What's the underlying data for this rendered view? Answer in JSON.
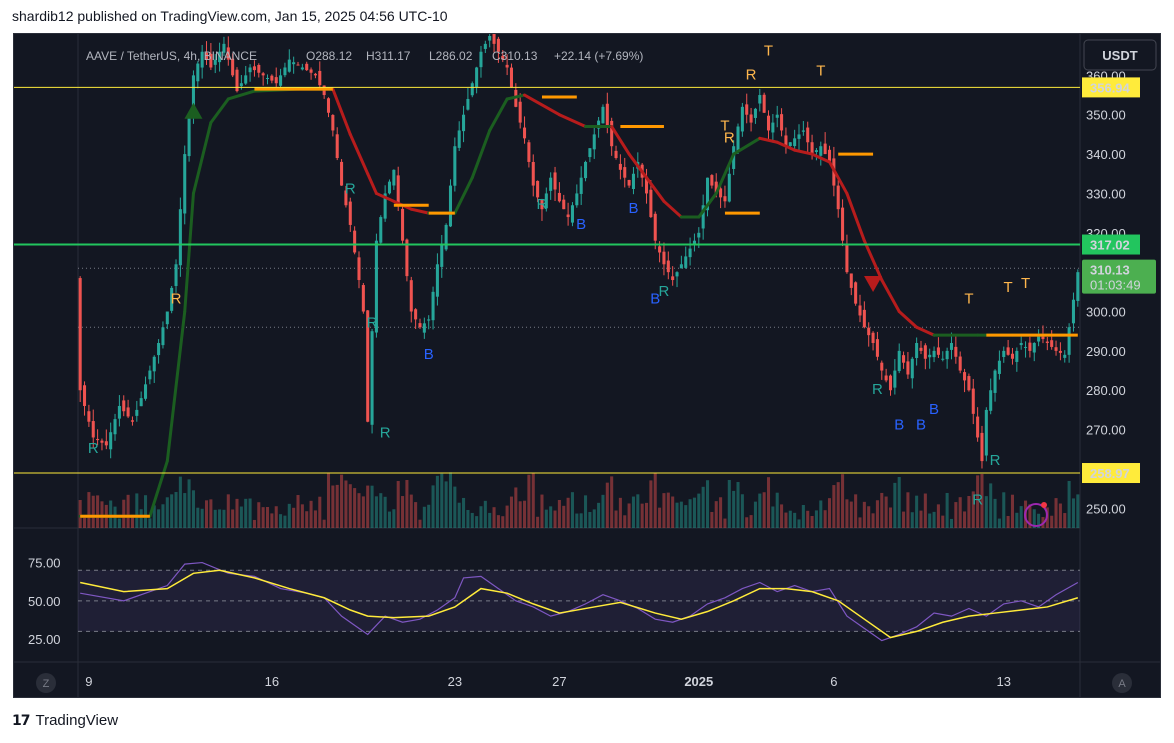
{
  "header": {
    "text": "shardib12 published on TradingView.com, Jan 15, 2025 04:56 UTC-10"
  },
  "footer": {
    "logo": "17",
    "brand": "TradingView"
  },
  "colors": {
    "background": "#131722",
    "up": "#26a69a",
    "down": "#ef5350",
    "yellow_line": "#ffeb3b",
    "green_line": "#22c55e",
    "orange": "#ff9800",
    "trail_green": "#1b5e20",
    "trail_red": "#b71c1c",
    "rsi": "#7e57c2",
    "rsi_ma": "#ffeb3b"
  },
  "chart_data": {
    "type": "candlestick",
    "symbol": "AAVE / TetherUS, 4h, BINANCE",
    "ohlc_text": {
      "o": "O288.12",
      "h": "H311.17",
      "l": "L286.02",
      "c": "C310.13",
      "chg": "+22.14 (+7.69%)"
    },
    "currency": "USDT",
    "ylim": [
      245,
      370
    ],
    "y_ticks": [
      250,
      260,
      270,
      280,
      290,
      300,
      310,
      320,
      330,
      340,
      350,
      360
    ],
    "y_tick_labels": [
      "250.00",
      "260.00",
      "270.00",
      "280.00",
      "290.00",
      "300.00",
      "310.00",
      "320.00",
      "330.00",
      "340.00",
      "350.00",
      "360.00"
    ],
    "x_tick_labels": [
      "9",
      "16",
      "23",
      "27",
      "2025",
      "6",
      "13"
    ],
    "x_tick_index": [
      2,
      44,
      86,
      110,
      142,
      173,
      212
    ],
    "n_candles": 230,
    "close_path": [
      [
        0,
        280
      ],
      [
        3,
        268
      ],
      [
        6,
        266
      ],
      [
        9,
        276
      ],
      [
        12,
        272
      ],
      [
        14,
        278
      ],
      [
        16,
        285
      ],
      [
        18,
        292
      ],
      [
        20,
        300
      ],
      [
        22,
        312
      ],
      [
        24,
        340
      ],
      [
        26,
        360
      ],
      [
        28,
        366
      ],
      [
        30,
        362
      ],
      [
        33,
        368
      ],
      [
        36,
        356
      ],
      [
        39,
        362
      ],
      [
        42,
        360
      ],
      [
        45,
        358
      ],
      [
        48,
        364
      ],
      [
        51,
        362
      ],
      [
        54,
        360
      ],
      [
        56,
        355
      ],
      [
        58,
        346
      ],
      [
        60,
        332
      ],
      [
        62,
        322
      ],
      [
        64,
        308
      ],
      [
        65,
        300
      ],
      [
        66,
        272
      ],
      [
        68,
        318
      ],
      [
        70,
        330
      ],
      [
        72,
        336
      ],
      [
        74,
        318
      ],
      [
        76,
        300
      ],
      [
        78,
        296
      ],
      [
        80,
        298
      ],
      [
        82,
        312
      ],
      [
        84,
        322
      ],
      [
        86,
        342
      ],
      [
        88,
        350
      ],
      [
        90,
        358
      ],
      [
        92,
        366
      ],
      [
        94,
        370
      ],
      [
        96,
        366
      ],
      [
        98,
        362
      ],
      [
        100,
        352
      ],
      [
        102,
        344
      ],
      [
        104,
        332
      ],
      [
        106,
        326
      ],
      [
        108,
        334
      ],
      [
        110,
        328
      ],
      [
        112,
        324
      ],
      [
        114,
        330
      ],
      [
        116,
        338
      ],
      [
        118,
        345
      ],
      [
        120,
        352
      ],
      [
        122,
        342
      ],
      [
        124,
        336
      ],
      [
        126,
        332
      ],
      [
        128,
        338
      ],
      [
        130,
        330
      ],
      [
        132,
        318
      ],
      [
        134,
        312
      ],
      [
        136,
        308
      ],
      [
        138,
        312
      ],
      [
        140,
        316
      ],
      [
        142,
        320
      ],
      [
        144,
        334
      ],
      [
        146,
        330
      ],
      [
        148,
        328
      ],
      [
        150,
        342
      ],
      [
        152,
        352
      ],
      [
        154,
        348
      ],
      [
        156,
        355
      ],
      [
        158,
        346
      ],
      [
        160,
        350
      ],
      [
        162,
        342
      ],
      [
        164,
        344
      ],
      [
        166,
        346
      ],
      [
        168,
        340
      ],
      [
        170,
        342
      ],
      [
        172,
        338
      ],
      [
        174,
        326
      ],
      [
        176,
        310
      ],
      [
        178,
        302
      ],
      [
        180,
        296
      ],
      [
        182,
        292
      ],
      [
        184,
        285
      ],
      [
        186,
        280
      ],
      [
        188,
        290
      ],
      [
        190,
        284
      ],
      [
        192,
        292
      ],
      [
        194,
        288
      ],
      [
        196,
        290
      ],
      [
        198,
        288
      ],
      [
        200,
        292
      ],
      [
        202,
        285
      ],
      [
        204,
        280
      ],
      [
        206,
        268
      ],
      [
        207,
        262
      ],
      [
        208,
        275
      ],
      [
        210,
        285
      ],
      [
        212,
        290
      ],
      [
        214,
        288
      ],
      [
        216,
        292
      ],
      [
        218,
        290
      ],
      [
        220,
        294
      ],
      [
        222,
        292
      ],
      [
        224,
        290
      ],
      [
        226,
        289
      ],
      [
        229,
        310
      ]
    ],
    "rsi_path": [
      [
        0,
        55
      ],
      [
        10,
        50
      ],
      [
        20,
        60
      ],
      [
        24,
        74
      ],
      [
        28,
        75
      ],
      [
        34,
        68
      ],
      [
        40,
        66
      ],
      [
        46,
        58
      ],
      [
        52,
        55
      ],
      [
        56,
        52
      ],
      [
        60,
        40
      ],
      [
        64,
        32
      ],
      [
        66,
        28
      ],
      [
        70,
        40
      ],
      [
        74,
        36
      ],
      [
        78,
        38
      ],
      [
        82,
        44
      ],
      [
        86,
        52
      ],
      [
        88,
        65
      ],
      [
        92,
        66
      ],
      [
        96,
        58
      ],
      [
        100,
        50
      ],
      [
        104,
        46
      ],
      [
        108,
        40
      ],
      [
        112,
        43
      ],
      [
        116,
        48
      ],
      [
        120,
        54
      ],
      [
        124,
        50
      ],
      [
        128,
        45
      ],
      [
        132,
        38
      ],
      [
        136,
        36
      ],
      [
        140,
        40
      ],
      [
        144,
        48
      ],
      [
        148,
        52
      ],
      [
        152,
        58
      ],
      [
        156,
        62
      ],
      [
        160,
        56
      ],
      [
        164,
        60
      ],
      [
        168,
        56
      ],
      [
        172,
        58
      ],
      [
        176,
        40
      ],
      [
        180,
        32
      ],
      [
        184,
        24
      ],
      [
        188,
        28
      ],
      [
        192,
        33
      ],
      [
        196,
        42
      ],
      [
        200,
        40
      ],
      [
        204,
        45
      ],
      [
        208,
        40
      ],
      [
        212,
        48
      ],
      [
        216,
        50
      ],
      [
        220,
        46
      ],
      [
        224,
        54
      ],
      [
        229,
        62
      ]
    ],
    "rsi_ma_path": [
      [
        0,
        62
      ],
      [
        10,
        56
      ],
      [
        20,
        58
      ],
      [
        26,
        68
      ],
      [
        32,
        70
      ],
      [
        40,
        65
      ],
      [
        48,
        58
      ],
      [
        56,
        52
      ],
      [
        62,
        44
      ],
      [
        66,
        40
      ],
      [
        72,
        39
      ],
      [
        80,
        40
      ],
      [
        86,
        46
      ],
      [
        92,
        58
      ],
      [
        98,
        55
      ],
      [
        104,
        48
      ],
      [
        110,
        42
      ],
      [
        118,
        46
      ],
      [
        124,
        49
      ],
      [
        132,
        42
      ],
      [
        138,
        38
      ],
      [
        144,
        43
      ],
      [
        150,
        50
      ],
      [
        156,
        58
      ],
      [
        162,
        58
      ],
      [
        168,
        56
      ],
      [
        174,
        50
      ],
      [
        180,
        38
      ],
      [
        186,
        26
      ],
      [
        192,
        30
      ],
      [
        198,
        36
      ],
      [
        204,
        40
      ],
      [
        210,
        42
      ],
      [
        216,
        44
      ],
      [
        222,
        46
      ],
      [
        229,
        52
      ]
    ],
    "rsi_ylim": [
      10,
      95
    ],
    "rsi_levels": [
      70,
      50,
      30
    ],
    "rsi_tick_labels": [
      "75.00",
      "50.00",
      "25.00"
    ],
    "rsi_tick_values": [
      75,
      50,
      25
    ],
    "levels": [
      {
        "label": "356.94",
        "value": 356.94,
        "kind": "yellow"
      },
      {
        "label": "317.02",
        "value": 317.02,
        "kind": "green"
      },
      {
        "label": "258.97",
        "value": 258.97,
        "kind": "yellow"
      }
    ],
    "top_yellow_level": 371,
    "dotted_levels": [
      311,
      296
    ],
    "current_price": {
      "label": "310.13",
      "timer": "01:03:49",
      "value": 310.13
    },
    "trail_path": [
      [
        0,
        248
      ],
      [
        16,
        248
      ],
      [
        20,
        262
      ],
      [
        24,
        300
      ],
      [
        26,
        330
      ],
      [
        30,
        348
      ],
      [
        34,
        354
      ],
      [
        40,
        356
      ],
      [
        50,
        356.5
      ],
      [
        58,
        356.5
      ],
      [
        62,
        345
      ],
      [
        66,
        335
      ],
      [
        68,
        330
      ],
      [
        72,
        328
      ],
      [
        76,
        326
      ],
      [
        80,
        325
      ],
      [
        86,
        325
      ],
      [
        90,
        334
      ],
      [
        94,
        346
      ],
      [
        98,
        354
      ],
      [
        102,
        355
      ],
      [
        110,
        350
      ],
      [
        116,
        347
      ],
      [
        122,
        347
      ],
      [
        126,
        340
      ],
      [
        130,
        334
      ],
      [
        134,
        328
      ],
      [
        138,
        324
      ],
      [
        142,
        324
      ],
      [
        146,
        330
      ],
      [
        150,
        340
      ],
      [
        156,
        344
      ],
      [
        160,
        343
      ],
      [
        164,
        341
      ],
      [
        168,
        340
      ],
      [
        172,
        338
      ],
      [
        176,
        330
      ],
      [
        180,
        318
      ],
      [
        184,
        308
      ],
      [
        188,
        300
      ],
      [
        192,
        296
      ],
      [
        196,
        294
      ],
      [
        206,
        294
      ],
      [
        214,
        294
      ],
      [
        220,
        294
      ],
      [
        226,
        294
      ]
    ],
    "orange_segments": [
      [
        0,
        16,
        248
      ],
      [
        40,
        58,
        356.5
      ],
      [
        72,
        80,
        327
      ],
      [
        80,
        86,
        325
      ],
      [
        106,
        114,
        354.5
      ],
      [
        124,
        134,
        347
      ],
      [
        148,
        156,
        325
      ],
      [
        174,
        182,
        340
      ],
      [
        208,
        229,
        294
      ]
    ],
    "markers": [
      {
        "t": "R",
        "i": 3,
        "v": 264,
        "c": "#26a69a"
      },
      {
        "t": "R",
        "i": 22,
        "v": 302,
        "c": "#ffb74d"
      },
      {
        "t": "R",
        "i": 62,
        "v": 330,
        "c": "#26a69a"
      },
      {
        "t": "R",
        "i": 67,
        "v": 296,
        "c": "#26a69a"
      },
      {
        "t": "R",
        "i": 70,
        "v": 268,
        "c": "#26a69a"
      },
      {
        "t": "B",
        "i": 80,
        "v": 288,
        "c": "#2962ff"
      },
      {
        "t": "R",
        "i": 106,
        "v": 326,
        "c": "#26a69a"
      },
      {
        "t": "B",
        "i": 115,
        "v": 321,
        "c": "#2962ff"
      },
      {
        "t": "B",
        "i": 127,
        "v": 325,
        "c": "#2962ff"
      },
      {
        "t": "R",
        "i": 134,
        "v": 304,
        "c": "#26a69a"
      },
      {
        "t": "B",
        "i": 132,
        "v": 302,
        "c": "#2962ff"
      },
      {
        "t": "T",
        "i": 148,
        "v": 346,
        "c": "#ffb74d"
      },
      {
        "t": "R",
        "i": 149,
        "v": 343,
        "c": "#ffb74d"
      },
      {
        "t": "R",
        "i": 154,
        "v": 359,
        "c": "#ffb74d"
      },
      {
        "t": "T",
        "i": 158,
        "v": 365,
        "c": "#ffb74d"
      },
      {
        "t": "T",
        "i": 170,
        "v": 360,
        "c": "#ffb74d"
      },
      {
        "t": "R",
        "i": 183,
        "v": 279,
        "c": "#26a69a"
      },
      {
        "t": "B",
        "i": 188,
        "v": 270,
        "c": "#2962ff"
      },
      {
        "t": "B",
        "i": 193,
        "v": 270,
        "c": "#2962ff"
      },
      {
        "t": "B",
        "i": 196,
        "v": 274,
        "c": "#2962ff"
      },
      {
        "t": "T",
        "i": 204,
        "v": 302,
        "c": "#ffb74d"
      },
      {
        "t": "T",
        "i": 213,
        "v": 305,
        "c": "#ffb74d"
      },
      {
        "t": "T",
        "i": 217,
        "v": 306,
        "c": "#ffb74d"
      },
      {
        "t": "R",
        "i": 210,
        "v": 261,
        "c": "#26a69a"
      },
      {
        "t": "R",
        "i": 206,
        "v": 251,
        "c": "#26a69a"
      }
    ],
    "arrows": [
      {
        "dir": "up",
        "i": 26,
        "v": 351,
        "c": "#1b5e20"
      },
      {
        "dir": "down",
        "i": 182,
        "v": 307,
        "c": "#b71c1c"
      }
    ],
    "corner_labels": {
      "left": "Z",
      "right": "A"
    }
  }
}
